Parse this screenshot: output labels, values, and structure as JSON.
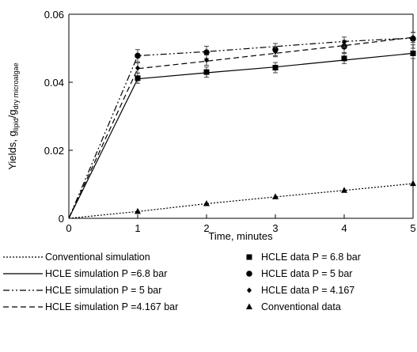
{
  "chart_data": {
    "type": "line",
    "xlabel": "Time, minutes",
    "ylabel_main": "Yields, ",
    "ylabel_g1": "g",
    "ylabel_sub1": "lipid",
    "ylabel_slash": "/",
    "ylabel_g2": "g",
    "ylabel_sub2": "dry microalgae",
    "xlim": [
      0,
      5
    ],
    "ylim": [
      0,
      0.06
    ],
    "x_ticks": [
      "0",
      "1",
      "2",
      "3",
      "4",
      "5"
    ],
    "y_ticks": [
      "0",
      "0.02",
      "0.04",
      "0.06"
    ],
    "grid": false,
    "legend_position": "bottom",
    "series": [
      {
        "name": "Conventional simulation",
        "kind": "line",
        "dash": "2,2",
        "color": "#000000",
        "x": [
          0,
          1,
          2,
          3,
          4,
          5
        ],
        "y": [
          0,
          0.002,
          0.0043,
          0.0063,
          0.0082,
          0.0102
        ]
      },
      {
        "name": "HCLE simulation P =6.8 bar",
        "kind": "line",
        "dash": "",
        "color": "#000000",
        "x": [
          0,
          1,
          2,
          3,
          4,
          5
        ],
        "y": [
          0,
          0.041,
          0.0428,
          0.0445,
          0.0465,
          0.0485
        ]
      },
      {
        "name": "HCLE simulation P = 5 bar",
        "kind": "line",
        "dash": "8,3,2,3,2,3",
        "color": "#000000",
        "x": [
          0,
          1,
          2,
          3,
          4,
          5
        ],
        "y": [
          0,
          0.0478,
          0.049,
          0.0505,
          0.052,
          0.053
        ]
      },
      {
        "name": "HCLE simulation P =4.167 bar",
        "kind": "line",
        "dash": "7,4",
        "color": "#000000",
        "x": [
          0,
          1,
          2,
          3,
          4,
          5
        ],
        "y": [
          0,
          0.044,
          0.0462,
          0.0485,
          0.0508,
          0.0532
        ]
      },
      {
        "name": "HCLE data P = 6.8 bar",
        "kind": "marker",
        "marker": "square",
        "color": "#000000",
        "x": [
          1,
          2,
          3,
          4,
          5
        ],
        "y": [
          0.0412,
          0.043,
          0.0443,
          0.047,
          0.0485
        ],
        "err": 0.0015
      },
      {
        "name": "HCLE data P = 5 bar",
        "kind": "marker",
        "marker": "circle",
        "color": "#000000",
        "x": [
          1,
          2,
          3,
          4,
          5
        ],
        "y": [
          0.0478,
          0.0488,
          0.0496,
          0.0505,
          0.0528
        ],
        "err": 0.0018
      },
      {
        "name": "HCLE data P = 4.167",
        "kind": "marker",
        "marker": "diamond",
        "color": "#000000",
        "x": [
          1,
          2,
          3,
          4,
          5
        ],
        "y": [
          0.0442,
          0.0465,
          0.049,
          0.0518,
          0.0532
        ],
        "err": 0.0015
      },
      {
        "name": "Conventional data",
        "kind": "marker",
        "marker": "triangle",
        "color": "#000000",
        "x": [
          1,
          2,
          3,
          4,
          5
        ],
        "y": [
          0.002,
          0.0043,
          0.0063,
          0.0082,
          0.0102
        ],
        "err": 0
      }
    ]
  }
}
